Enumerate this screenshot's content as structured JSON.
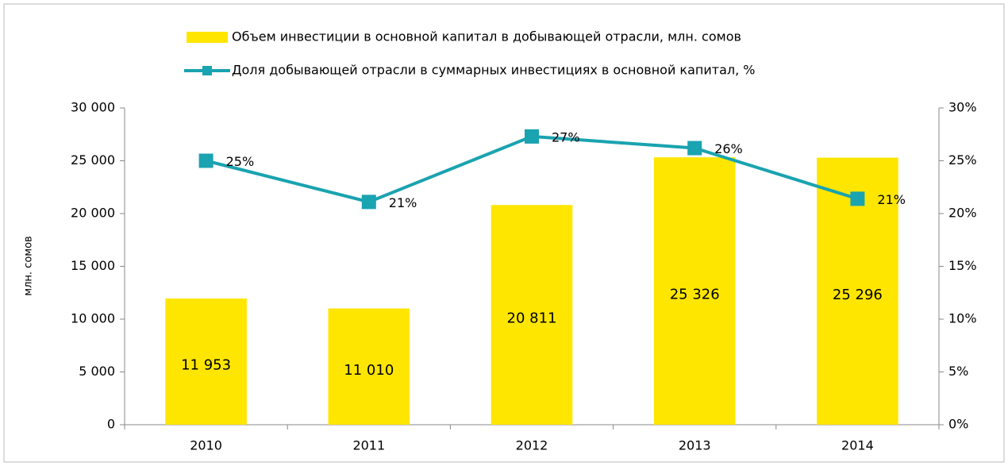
{
  "chart_data": {
    "type": "bar",
    "y_label": "млн. сомов",
    "categories": [
      "2010",
      "2011",
      "2012",
      "2013",
      "2014"
    ],
    "series": [
      {
        "name": "Объем инвестиции в основной капитал в добывающей отрасли, млн. сомов",
        "type": "bar",
        "color": "#ffe600",
        "values": [
          11953,
          11010,
          20811,
          25326,
          25296
        ],
        "value_labels": [
          "11 953",
          "11 010",
          "20 811",
          "25 326",
          "25 296"
        ]
      },
      {
        "name": "Доля добывающей отрасли в суммарных инвестициях в основной капитал, %",
        "type": "line",
        "axis": "y2",
        "color": "#1aa3b0",
        "values": [
          25,
          21.1,
          27.3,
          26.2,
          21.4
        ],
        "value_labels": [
          "25%",
          "21%",
          "27%",
          "26%",
          "21%"
        ]
      }
    ],
    "ylim": [
      0,
      30000
    ],
    "yticks": [
      0,
      {
        "value": 5000,
        "label": "5 000"
      },
      {
        "value": 10000,
        "label": "10 000"
      },
      {
        "value": 15000,
        "label": "15 000"
      },
      {
        "value": 20000,
        "label": "20 000"
      },
      {
        "value": 25000,
        "label": "25 000"
      },
      {
        "value": 30000,
        "label": "30 000"
      }
    ],
    "y2lim": [
      0,
      30
    ],
    "y2ticks": [
      {
        "value": 0,
        "label": "0%"
      },
      {
        "value": 5,
        "label": "5%"
      },
      {
        "value": 10,
        "label": "10%"
      },
      {
        "value": 15,
        "label": "15%"
      },
      {
        "value": 20,
        "label": "20%"
      },
      {
        "value": 25,
        "label": "25%"
      },
      {
        "value": 30,
        "label": "30%"
      }
    ]
  }
}
